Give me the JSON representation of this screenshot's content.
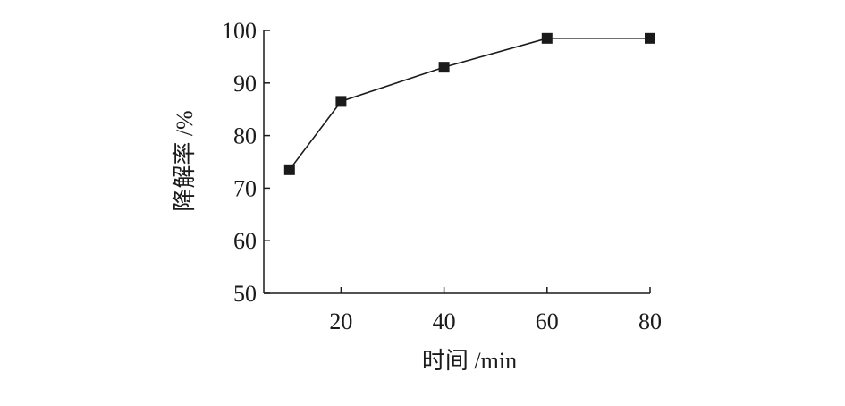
{
  "chart_data": {
    "type": "line",
    "title": "",
    "xlabel": "时间 /min",
    "ylabel": "降解率 /%",
    "x_ticks": [
      20,
      40,
      60,
      80
    ],
    "y_ticks": [
      50,
      60,
      70,
      80,
      90,
      100
    ],
    "xlim": [
      5,
      80
    ],
    "ylim": [
      50,
      100
    ],
    "grid": false,
    "legend": "none",
    "series": [
      {
        "x": [
          10,
          20,
          40,
          60,
          80
        ],
        "y": [
          73.5,
          86.5,
          93.0,
          98.5,
          98.5
        ],
        "marker": "square",
        "color": "#1a1a1a"
      }
    ]
  }
}
